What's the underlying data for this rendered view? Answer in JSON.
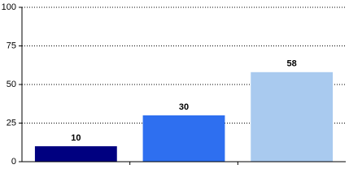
{
  "chart_data": {
    "type": "bar",
    "categories": [
      null,
      null,
      null
    ],
    "values": [
      10,
      30,
      58
    ],
    "colors": [
      "#000080",
      "#2e6ff0",
      "#a9caef"
    ],
    "ylim": [
      0,
      100
    ],
    "yticks": [
      0,
      25,
      50,
      75,
      100
    ],
    "grid": true
  }
}
